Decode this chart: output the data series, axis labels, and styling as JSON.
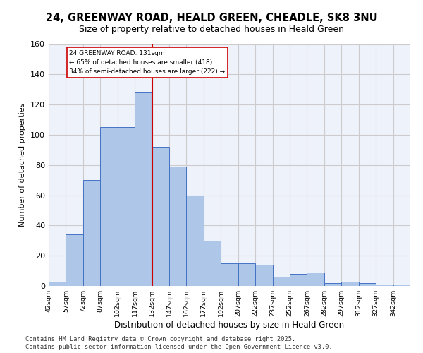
{
  "title1": "24, GREENWAY ROAD, HEALD GREEN, CHEADLE, SK8 3NU",
  "title2": "Size of property relative to detached houses in Heald Green",
  "xlabel": "Distribution of detached houses by size in Heald Green",
  "ylabel": "Number of detached properties",
  "bar_labels": [
    "42sqm",
    "57sqm",
    "72sqm",
    "87sqm",
    "102sqm",
    "117sqm",
    "132sqm",
    "147sqm",
    "162sqm",
    "177sqm",
    "192sqm",
    "207sqm",
    "222sqm",
    "237sqm",
    "252sqm",
    "267sqm",
    "282sqm",
    "297sqm",
    "312sqm",
    "327sqm",
    "342sqm"
  ],
  "bar_values": [
    3,
    34,
    70,
    105,
    105,
    128,
    92,
    79,
    60,
    30,
    15,
    15,
    14,
    6,
    8,
    9,
    2,
    3,
    2,
    1,
    1
  ],
  "bar_color": "#aec6e8",
  "bar_edge_color": "#4472c4",
  "vline_x": 132,
  "property_line_label": "24 GREENWAY ROAD: 131sqm",
  "annotation_line1": "← 65% of detached houses are smaller (418)",
  "annotation_line2": "34% of semi-detached houses are larger (222) →",
  "vline_color": "#cc0000",
  "ylim": [
    0,
    160
  ],
  "yticks": [
    0,
    20,
    40,
    60,
    80,
    100,
    120,
    140,
    160
  ],
  "grid_color": "#cccccc",
  "bg_color": "#eef2fb",
  "footer1": "Contains HM Land Registry data © Crown copyright and database right 2025.",
  "footer2": "Contains public sector information licensed under the Open Government Licence v3.0."
}
